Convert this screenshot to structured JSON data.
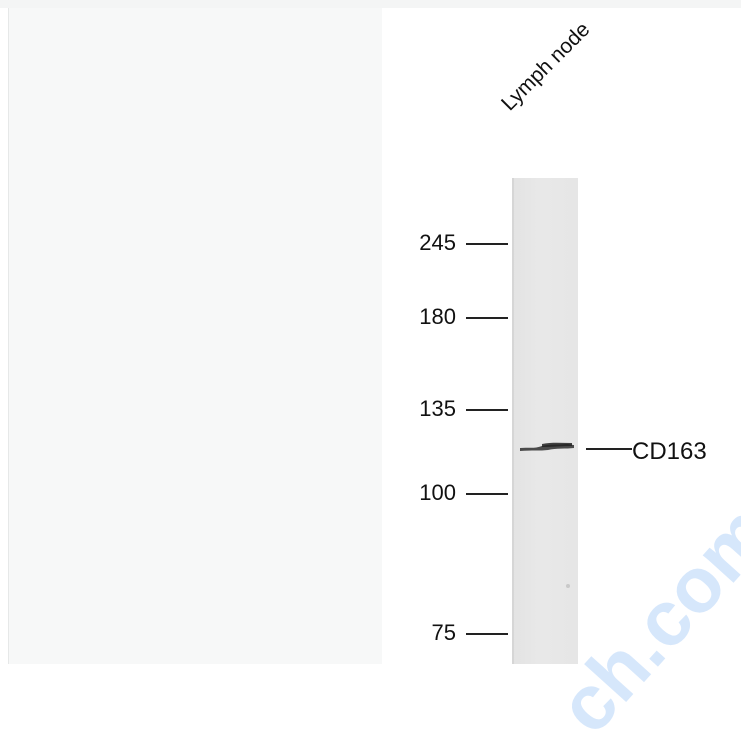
{
  "blot": {
    "lane_label": "Lymph node",
    "markers": [
      "245",
      "180",
      "135",
      "100",
      "75"
    ],
    "band_label": "CD163"
  },
  "watermark": {
    "text": "ch.com"
  },
  "colors": {
    "panel_bg": "#f7f8f8",
    "lane_bg": "#e6e6e6",
    "band": "#333333",
    "watermark": "#cfe3fb"
  }
}
